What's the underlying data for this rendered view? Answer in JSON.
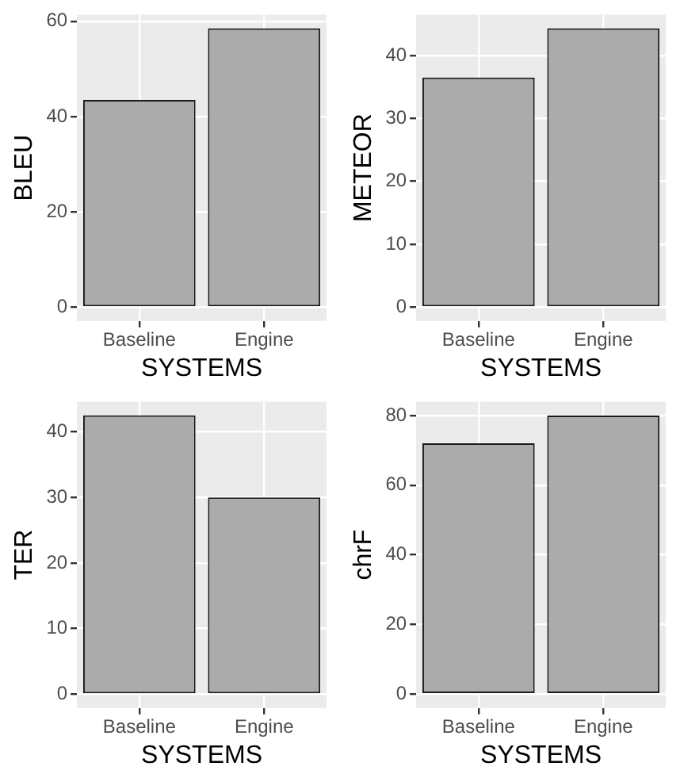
{
  "chart_data": [
    {
      "type": "bar",
      "categories": [
        "Baseline",
        "Engine"
      ],
      "values": [
        43.5,
        58.5
      ],
      "color": "#ababab",
      "xlabel": "SYSTEMS",
      "ylabel": "BLEU",
      "ylim": [
        -2.9,
        61.4
      ],
      "yticks": [
        0,
        20,
        40,
        60
      ],
      "grid": true
    },
    {
      "type": "bar",
      "categories": [
        "Baseline",
        "Engine"
      ],
      "values": [
        36.5,
        44.3
      ],
      "color": "#ababab",
      "xlabel": "SYSTEMS",
      "ylabel": "METEOR",
      "ylim": [
        -2.2,
        46.5
      ],
      "yticks": [
        0,
        10,
        20,
        30,
        40
      ],
      "grid": true
    },
    {
      "type": "bar",
      "categories": [
        "Baseline",
        "Engine"
      ],
      "values": [
        42.5,
        30
      ],
      "color": "#ababab",
      "xlabel": "SYSTEMS",
      "ylabel": "TER",
      "ylim": [
        -2.1,
        44.6
      ],
      "yticks": [
        0,
        10,
        20,
        30,
        40
      ],
      "grid": true
    },
    {
      "type": "bar",
      "categories": [
        "Baseline",
        "Engine"
      ],
      "values": [
        72,
        80
      ],
      "color": "#ababab",
      "xlabel": "SYSTEMS",
      "ylabel": "chrF",
      "ylim": [
        -4,
        84
      ],
      "yticks": [
        0,
        20,
        40,
        60,
        80
      ],
      "grid": true
    }
  ]
}
